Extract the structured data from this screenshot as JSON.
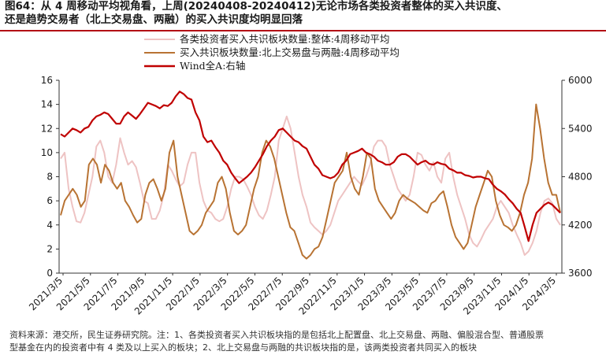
{
  "figure": {
    "title_line1": "图64：从 4 周移动平均视角看，上周(20240408-20240412)无论市场各类投资者整体的买入共识度、",
    "title_line2": "还是趋势交易者（北上交易盘、两融）的买入共识度均明显回落",
    "source_line1": "资料来源：港交所，民生证券研究院。注：1、各类投资者买入共识板块指的是包括北上配置盘、北上交易盘、两融、偏股混合型、普通股票",
    "source_line2": "型基金在内的投资者中有 4 类及以上买入的板块；2、北上交易盘与两融的共识板块指的是，该两类投资者共同买入的板块"
  },
  "colors": {
    "title_rule": "#b30f15",
    "overall": "#eec3c3",
    "northbound": "#b87333",
    "wind": "#c00000"
  },
  "chart_data": {
    "type": "line",
    "y_left": {
      "min": 0,
      "max": 16,
      "ticks": [
        0,
        2,
        4,
        6,
        8,
        10,
        12,
        14,
        16
      ]
    },
    "y_right": {
      "min": 3600,
      "max": 6000,
      "ticks": [
        3600,
        4200,
        4800,
        5400,
        6000
      ]
    },
    "x_labels": [
      "2021/3/5",
      "2021/5/5",
      "2021/7/5",
      "2021/9/5",
      "2021/11/5",
      "2022/1/5",
      "2022/3/5",
      "2022/5/5",
      "2022/7/5",
      "2022/9/5",
      "2022/11/5",
      "2023/1/5",
      "2023/3/5",
      "2023/5/5",
      "2023/7/5",
      "2023/9/5",
      "2023/11/5",
      "2024/1/5",
      "2024/3/5"
    ],
    "legend_position": "top-left",
    "series": [
      {
        "name": "各类投资者买入共识板块数量:整体:4周移动平均",
        "axis": "left",
        "values": [
          9.5,
          10,
          7,
          5.5,
          4.3,
          4.2,
          5,
          6.5,
          8,
          10.5,
          11,
          10,
          8,
          7.5,
          9,
          11.2,
          10,
          9,
          9.3,
          8.8,
          7.5,
          6,
          5.8,
          4.5,
          4.5,
          5.2,
          6.5,
          9,
          8.5,
          7.8,
          7.2,
          7.5,
          9,
          10,
          10,
          7.5,
          6,
          5.2,
          5,
          4.5,
          4.3,
          4.5,
          5.5,
          7,
          8,
          8,
          7.8,
          7.2,
          6.5,
          5.5,
          4.8,
          4.5,
          5.2,
          6.5,
          8,
          11,
          12,
          13,
          12,
          10,
          8,
          6.5,
          5.5,
          4.2,
          3.8,
          3.5,
          3.2,
          3.5,
          4,
          5,
          6,
          6.5,
          7,
          7.5,
          8,
          7.6,
          7.3,
          8,
          9,
          10.5,
          11,
          11,
          10.5,
          9,
          8,
          7,
          6.5,
          6,
          6.5,
          8,
          10,
          9.8,
          9,
          8.5,
          9.2,
          8,
          7.5,
          9.5,
          10,
          8,
          6.5,
          5.5,
          4.5,
          3.2,
          2.5,
          2.2,
          2.8,
          3.5,
          4,
          4.5,
          5.5,
          6,
          5.5,
          5,
          4,
          3.2,
          2.5,
          1.5,
          1.8,
          2.5,
          3.5,
          5,
          6,
          6.2,
          5.8,
          4.5,
          4
        ]
      },
      {
        "name": "买入共识板块数量:北上交易盘与两融:4周移动平均",
        "axis": "left",
        "values": [
          4.8,
          6,
          6.5,
          7,
          6.5,
          5.5,
          6,
          9,
          9.5,
          9,
          7.5,
          9,
          8.5,
          7.5,
          7,
          7.5,
          6,
          5.5,
          4.8,
          4.2,
          4.5,
          6.5,
          7.5,
          7.8,
          7,
          6,
          7,
          10,
          11,
          8,
          6.5,
          5,
          3.5,
          3.2,
          3.5,
          4,
          5,
          5.5,
          6,
          7.5,
          8,
          7,
          5,
          3.5,
          3.2,
          3.5,
          4,
          5.5,
          7,
          8,
          10,
          11,
          10.5,
          9.5,
          8,
          6.5,
          5,
          3.8,
          3.5,
          2.5,
          1.5,
          1.2,
          1.5,
          2,
          2.2,
          3,
          4.5,
          6,
          7.5,
          8,
          8.5,
          10,
          8,
          7,
          6.5,
          8,
          10,
          9.5,
          7,
          6,
          5.5,
          5,
          4.5,
          5,
          6,
          6.5,
          6.2,
          6,
          5.8,
          5.5,
          5.2,
          5,
          5.8,
          6,
          6.5,
          6.8,
          5.5,
          4,
          3,
          2.5,
          2,
          2.5,
          4,
          5.5,
          6.5,
          7.5,
          8.5,
          8,
          6,
          4.8,
          4,
          3.8,
          3.5,
          4,
          5,
          6.5,
          7.5,
          9.5,
          14,
          12,
          9.5,
          7.5,
          6.5,
          6.5,
          5
        ]
      },
      {
        "name": "Wind全A:右轴",
        "axis": "right",
        "values": [
          5330,
          5300,
          5350,
          5400,
          5380,
          5350,
          5400,
          5420,
          5500,
          5550,
          5570,
          5600,
          5580,
          5520,
          5460,
          5460,
          5550,
          5600,
          5560,
          5520,
          5580,
          5650,
          5720,
          5700,
          5680,
          5650,
          5690,
          5680,
          5720,
          5800,
          5860,
          5830,
          5780,
          5760,
          5600,
          5500,
          5300,
          5230,
          5250,
          5170,
          5100,
          5000,
          4950,
          4850,
          4780,
          4720,
          4760,
          4800,
          4850,
          4920,
          5000,
          5080,
          5180,
          5250,
          5300,
          5380,
          5400,
          5350,
          5300,
          5250,
          5230,
          5180,
          5150,
          5050,
          4950,
          4900,
          4820,
          4800,
          4780,
          4800,
          4850,
          4950,
          5000,
          5080,
          5100,
          5120,
          5150,
          5100,
          5080,
          5050,
          5000,
          4980,
          4950,
          4950,
          4980,
          5050,
          5080,
          5080,
          5050,
          5000,
          4950,
          4980,
          5000,
          4960,
          4950,
          4980,
          4960,
          4950,
          4900,
          4880,
          4850,
          4850,
          4820,
          4810,
          4790,
          4800,
          4800,
          4780,
          4770,
          4700,
          4650,
          4620,
          4580,
          4520,
          4470,
          4400,
          4350,
          4180,
          4000,
          4200,
          4350,
          4400,
          4450,
          4480,
          4450,
          4400,
          4350
        ]
      }
    ]
  }
}
